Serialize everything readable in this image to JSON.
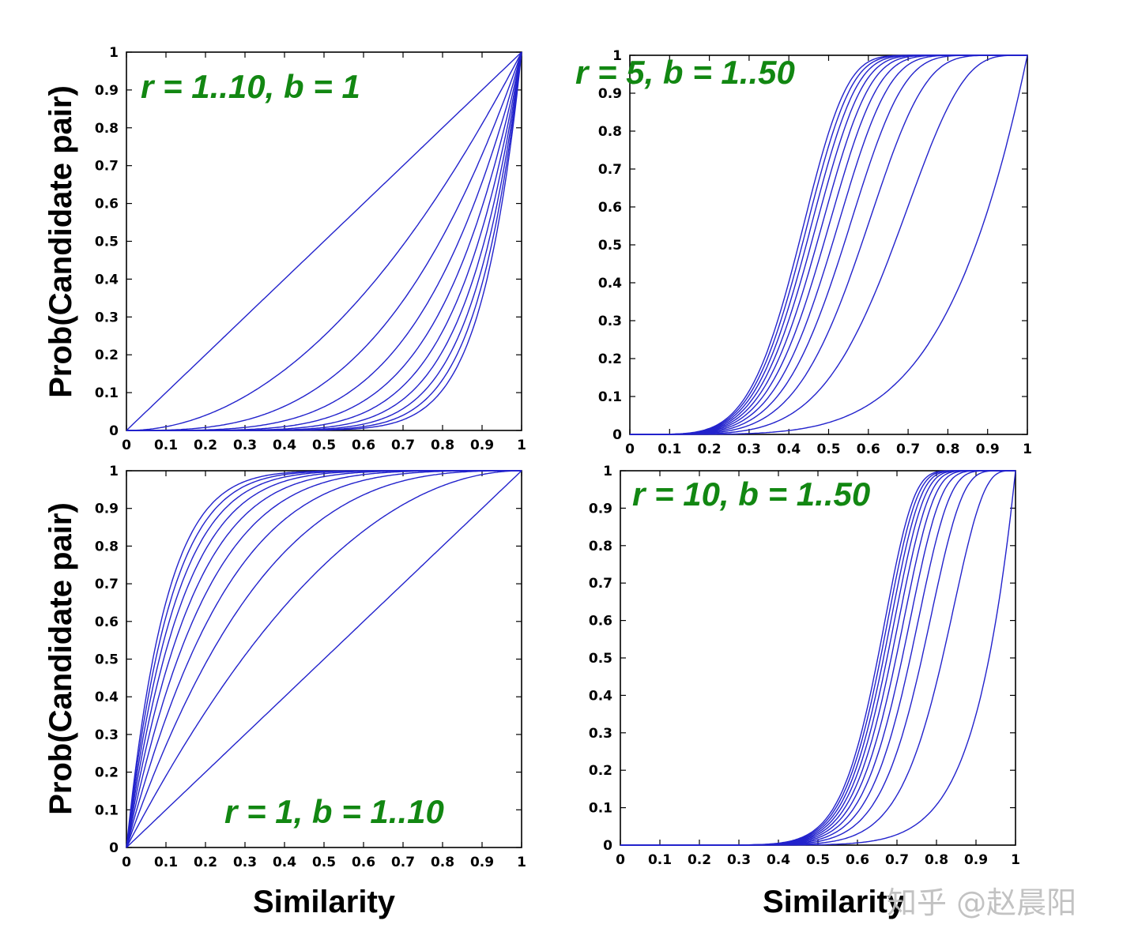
{
  "figure": {
    "watermark": "知乎 @赵晨阳"
  },
  "colors": {
    "curve": "#2222cc",
    "annotation": "#128712",
    "axis": "#000000",
    "tick_label": "#000000",
    "watermark": "#bfbfbf",
    "background": "#ffffff"
  },
  "chart_data": [
    {
      "id": "top-left",
      "type": "line",
      "annotation": "r = 1..10, b = 1",
      "xlabel": "",
      "ylabel": "Prob(Candidate pair)",
      "formula": "P(s) = 1 - (1 - s^r)^b",
      "xlim": [
        0,
        1
      ],
      "ylim": [
        0,
        1
      ],
      "grid": false,
      "legend": "none",
      "xtick_labels": [
        "0",
        "0.1",
        "0.2",
        "0.3",
        "0.4",
        "0.5",
        "0.6",
        "0.7",
        "0.8",
        "0.9",
        "1"
      ],
      "ytick_labels": [
        "0",
        "0.1",
        "0.2",
        "0.3",
        "0.4",
        "0.5",
        "0.6",
        "0.7",
        "0.8",
        "0.9",
        "1"
      ],
      "series": [
        {
          "name": "r=1, b=1",
          "r": 1,
          "b": 1
        },
        {
          "name": "r=2, b=1",
          "r": 2,
          "b": 1
        },
        {
          "name": "r=3, b=1",
          "r": 3,
          "b": 1
        },
        {
          "name": "r=4, b=1",
          "r": 4,
          "b": 1
        },
        {
          "name": "r=5, b=1",
          "r": 5,
          "b": 1
        },
        {
          "name": "r=6, b=1",
          "r": 6,
          "b": 1
        },
        {
          "name": "r=7, b=1",
          "r": 7,
          "b": 1
        },
        {
          "name": "r=8, b=1",
          "r": 8,
          "b": 1
        },
        {
          "name": "r=9, b=1",
          "r": 9,
          "b": 1
        },
        {
          "name": "r=10, b=1",
          "r": 10,
          "b": 1
        }
      ]
    },
    {
      "id": "top-right",
      "type": "line",
      "annotation": "r = 5, b = 1..50",
      "xlabel": "",
      "ylabel": "",
      "formula": "P(s) = 1 - (1 - s^r)^b",
      "xlim": [
        0,
        1
      ],
      "ylim": [
        0,
        1
      ],
      "grid": false,
      "legend": "none",
      "xtick_labels": [
        "0",
        "0.1",
        "0.2",
        "0.3",
        "0.4",
        "0.5",
        "0.6",
        "0.7",
        "0.8",
        "0.9",
        "1"
      ],
      "ytick_labels": [
        "0",
        "0.1",
        "0.2",
        "0.3",
        "0.4",
        "0.5",
        "0.6",
        "0.7",
        "0.8",
        "0.9",
        "1"
      ],
      "series": [
        {
          "name": "r=5, b=1",
          "r": 5,
          "b": 1
        },
        {
          "name": "r=5, b=5",
          "r": 5,
          "b": 5
        },
        {
          "name": "r=5, b=10",
          "r": 5,
          "b": 10
        },
        {
          "name": "r=5, b=15",
          "r": 5,
          "b": 15
        },
        {
          "name": "r=5, b=20",
          "r": 5,
          "b": 20
        },
        {
          "name": "r=5, b=25",
          "r": 5,
          "b": 25
        },
        {
          "name": "r=5, b=30",
          "r": 5,
          "b": 30
        },
        {
          "name": "r=5, b=35",
          "r": 5,
          "b": 35
        },
        {
          "name": "r=5, b=40",
          "r": 5,
          "b": 40
        },
        {
          "name": "r=5, b=45",
          "r": 5,
          "b": 45
        },
        {
          "name": "r=5, b=50",
          "r": 5,
          "b": 50
        }
      ]
    },
    {
      "id": "bottom-left",
      "type": "line",
      "annotation": "r = 1, b = 1..10",
      "xlabel": "Similarity",
      "ylabel": "Prob(Candidate pair)",
      "formula": "P(s) = 1 - (1 - s^r)^b",
      "xlim": [
        0,
        1
      ],
      "ylim": [
        0,
        1
      ],
      "grid": false,
      "legend": "none",
      "xtick_labels": [
        "0",
        "0.1",
        "0.2",
        "0.3",
        "0.4",
        "0.5",
        "0.6",
        "0.7",
        "0.8",
        "0.9",
        "1"
      ],
      "ytick_labels": [
        "0",
        "0.1",
        "0.2",
        "0.3",
        "0.4",
        "0.5",
        "0.6",
        "0.7",
        "0.8",
        "0.9",
        "1"
      ],
      "series": [
        {
          "name": "r=1, b=1",
          "r": 1,
          "b": 1
        },
        {
          "name": "r=1, b=2",
          "r": 1,
          "b": 2
        },
        {
          "name": "r=1, b=3",
          "r": 1,
          "b": 3
        },
        {
          "name": "r=1, b=4",
          "r": 1,
          "b": 4
        },
        {
          "name": "r=1, b=5",
          "r": 1,
          "b": 5
        },
        {
          "name": "r=1, b=6",
          "r": 1,
          "b": 6
        },
        {
          "name": "r=1, b=7",
          "r": 1,
          "b": 7
        },
        {
          "name": "r=1, b=8",
          "r": 1,
          "b": 8
        },
        {
          "name": "r=1, b=9",
          "r": 1,
          "b": 9
        },
        {
          "name": "r=1, b=10",
          "r": 1,
          "b": 10
        }
      ]
    },
    {
      "id": "bottom-right",
      "type": "line",
      "annotation": "r = 10, b = 1..50",
      "xlabel": "Similarity",
      "ylabel": "",
      "formula": "P(s) = 1 - (1 - s^r)^b",
      "xlim": [
        0,
        1
      ],
      "ylim": [
        0,
        1
      ],
      "grid": false,
      "legend": "none",
      "xtick_labels": [
        "0",
        "0.1",
        "0.2",
        "0.3",
        "0.4",
        "0.5",
        "0.6",
        "0.7",
        "0.8",
        "0.9",
        "1"
      ],
      "ytick_labels": [
        "0",
        "0.1",
        "0.2",
        "0.3",
        "0.4",
        "0.5",
        "0.6",
        "0.7",
        "0.8",
        "0.9",
        "1"
      ],
      "series": [
        {
          "name": "r=10, b=1",
          "r": 10,
          "b": 1
        },
        {
          "name": "r=10, b=5",
          "r": 10,
          "b": 5
        },
        {
          "name": "r=10, b=10",
          "r": 10,
          "b": 10
        },
        {
          "name": "r=10, b=15",
          "r": 10,
          "b": 15
        },
        {
          "name": "r=10, b=20",
          "r": 10,
          "b": 20
        },
        {
          "name": "r=10, b=25",
          "r": 10,
          "b": 25
        },
        {
          "name": "r=10, b=30",
          "r": 10,
          "b": 30
        },
        {
          "name": "r=10, b=35",
          "r": 10,
          "b": 35
        },
        {
          "name": "r=10, b=40",
          "r": 10,
          "b": 40
        },
        {
          "name": "r=10, b=45",
          "r": 10,
          "b": 45
        },
        {
          "name": "r=10, b=50",
          "r": 10,
          "b": 50
        }
      ]
    }
  ]
}
